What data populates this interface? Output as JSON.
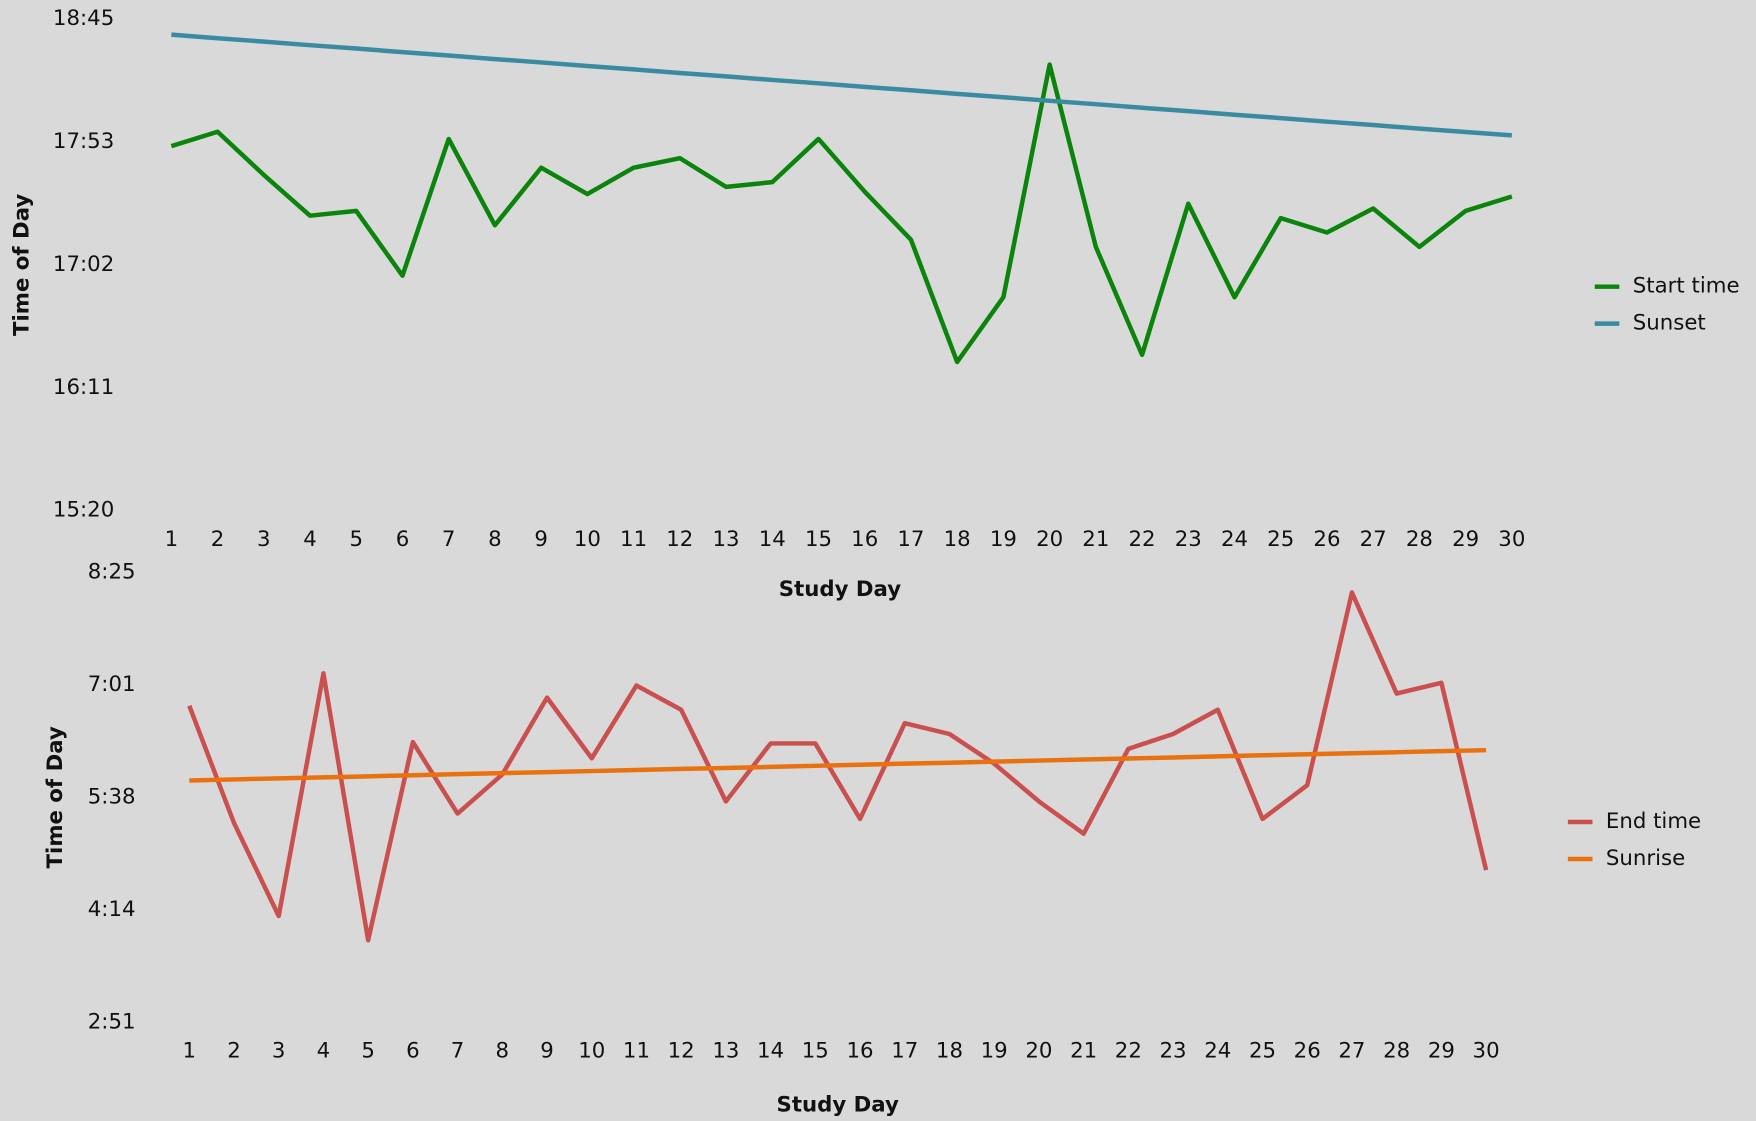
{
  "chart_data": [
    {
      "type": "line",
      "y_label": "Time of Day",
      "x_label": "Study Day",
      "x": [
        1,
        2,
        3,
        4,
        5,
        6,
        7,
        8,
        9,
        10,
        11,
        12,
        13,
        14,
        15,
        16,
        17,
        18,
        19,
        20,
        21,
        22,
        23,
        24,
        25,
        26,
        27,
        28,
        29,
        30
      ],
      "xlim": [
        1,
        30
      ],
      "ylim": [
        920,
        1125
      ],
      "yticks": [
        {
          "value": 920,
          "label": "15:20"
        },
        {
          "value": 971.25,
          "label": "16:11"
        },
        {
          "value": 1022.5,
          "label": "17:02"
        },
        {
          "value": 1073.75,
          "label": "17:53"
        },
        {
          "value": 1125,
          "label": "18:45"
        }
      ],
      "legend": "right",
      "series": [
        {
          "name": "Start time",
          "color": "#0b840b",
          "values": [
            1072,
            1078,
            1060,
            1043,
            1045,
            1018,
            1075,
            1039,
            1063,
            1052,
            1063,
            1067,
            1055,
            1057,
            1075,
            1053,
            1033,
            982,
            1009,
            1106,
            1030,
            985,
            1048,
            1009,
            1042,
            1036,
            1046,
            1030,
            1045,
            1051
          ]
        },
        {
          "name": "Sunset",
          "color": "#3a8ba2",
          "values": [
            1118.5,
            1117,
            1115.6,
            1114.1,
            1112.7,
            1111.2,
            1109.8,
            1108.3,
            1106.9,
            1105.4,
            1104,
            1102.5,
            1101.1,
            1099.6,
            1098.2,
            1096.7,
            1095.3,
            1093.8,
            1092.4,
            1090.9,
            1089.5,
            1088,
            1086.6,
            1085.1,
            1083.7,
            1082.2,
            1080.8,
            1079.3,
            1077.9,
            1076.5
          ]
        }
      ]
    },
    {
      "type": "line",
      "y_label": "Time of Day",
      "x_label": "Study Day",
      "x": [
        1,
        2,
        3,
        4,
        5,
        6,
        7,
        8,
        9,
        10,
        11,
        12,
        13,
        14,
        15,
        16,
        17,
        18,
        19,
        20,
        21,
        22,
        23,
        24,
        25,
        26,
        27,
        28,
        29,
        30
      ],
      "xlim": [
        1,
        30
      ],
      "ylim": [
        171,
        505
      ],
      "yticks": [
        {
          "value": 171,
          "label": "2:51"
        },
        {
          "value": 254.5,
          "label": "4:14"
        },
        {
          "value": 338,
          "label": "5:38"
        },
        {
          "value": 421.5,
          "label": "7:01"
        },
        {
          "value": 505,
          "label": "8:25"
        }
      ],
      "legend": "right",
      "series": [
        {
          "name": "End time",
          "color": "#c9504f",
          "values": [
            406,
            319,
            250,
            430,
            232,
            379,
            326,
            355,
            412,
            367,
            421,
            403,
            335,
            378,
            378,
            322,
            393,
            385,
            363,
            335,
            311,
            374,
            385,
            403,
            322,
            347,
            490,
            415,
            423,
            284
          ]
        },
        {
          "name": "Sunrise",
          "color": "#e9710f",
          "values": [
            350.5,
            351.3,
            352.1,
            352.8,
            353.6,
            354.4,
            355.2,
            356,
            356.7,
            357.5,
            358.3,
            359.1,
            359.8,
            360.6,
            361.4,
            362.2,
            363,
            363.7,
            364.5,
            365.3,
            366.1,
            366.8,
            367.6,
            368.4,
            369.2,
            370,
            370.7,
            371.5,
            372.3,
            373
          ]
        }
      ]
    }
  ]
}
